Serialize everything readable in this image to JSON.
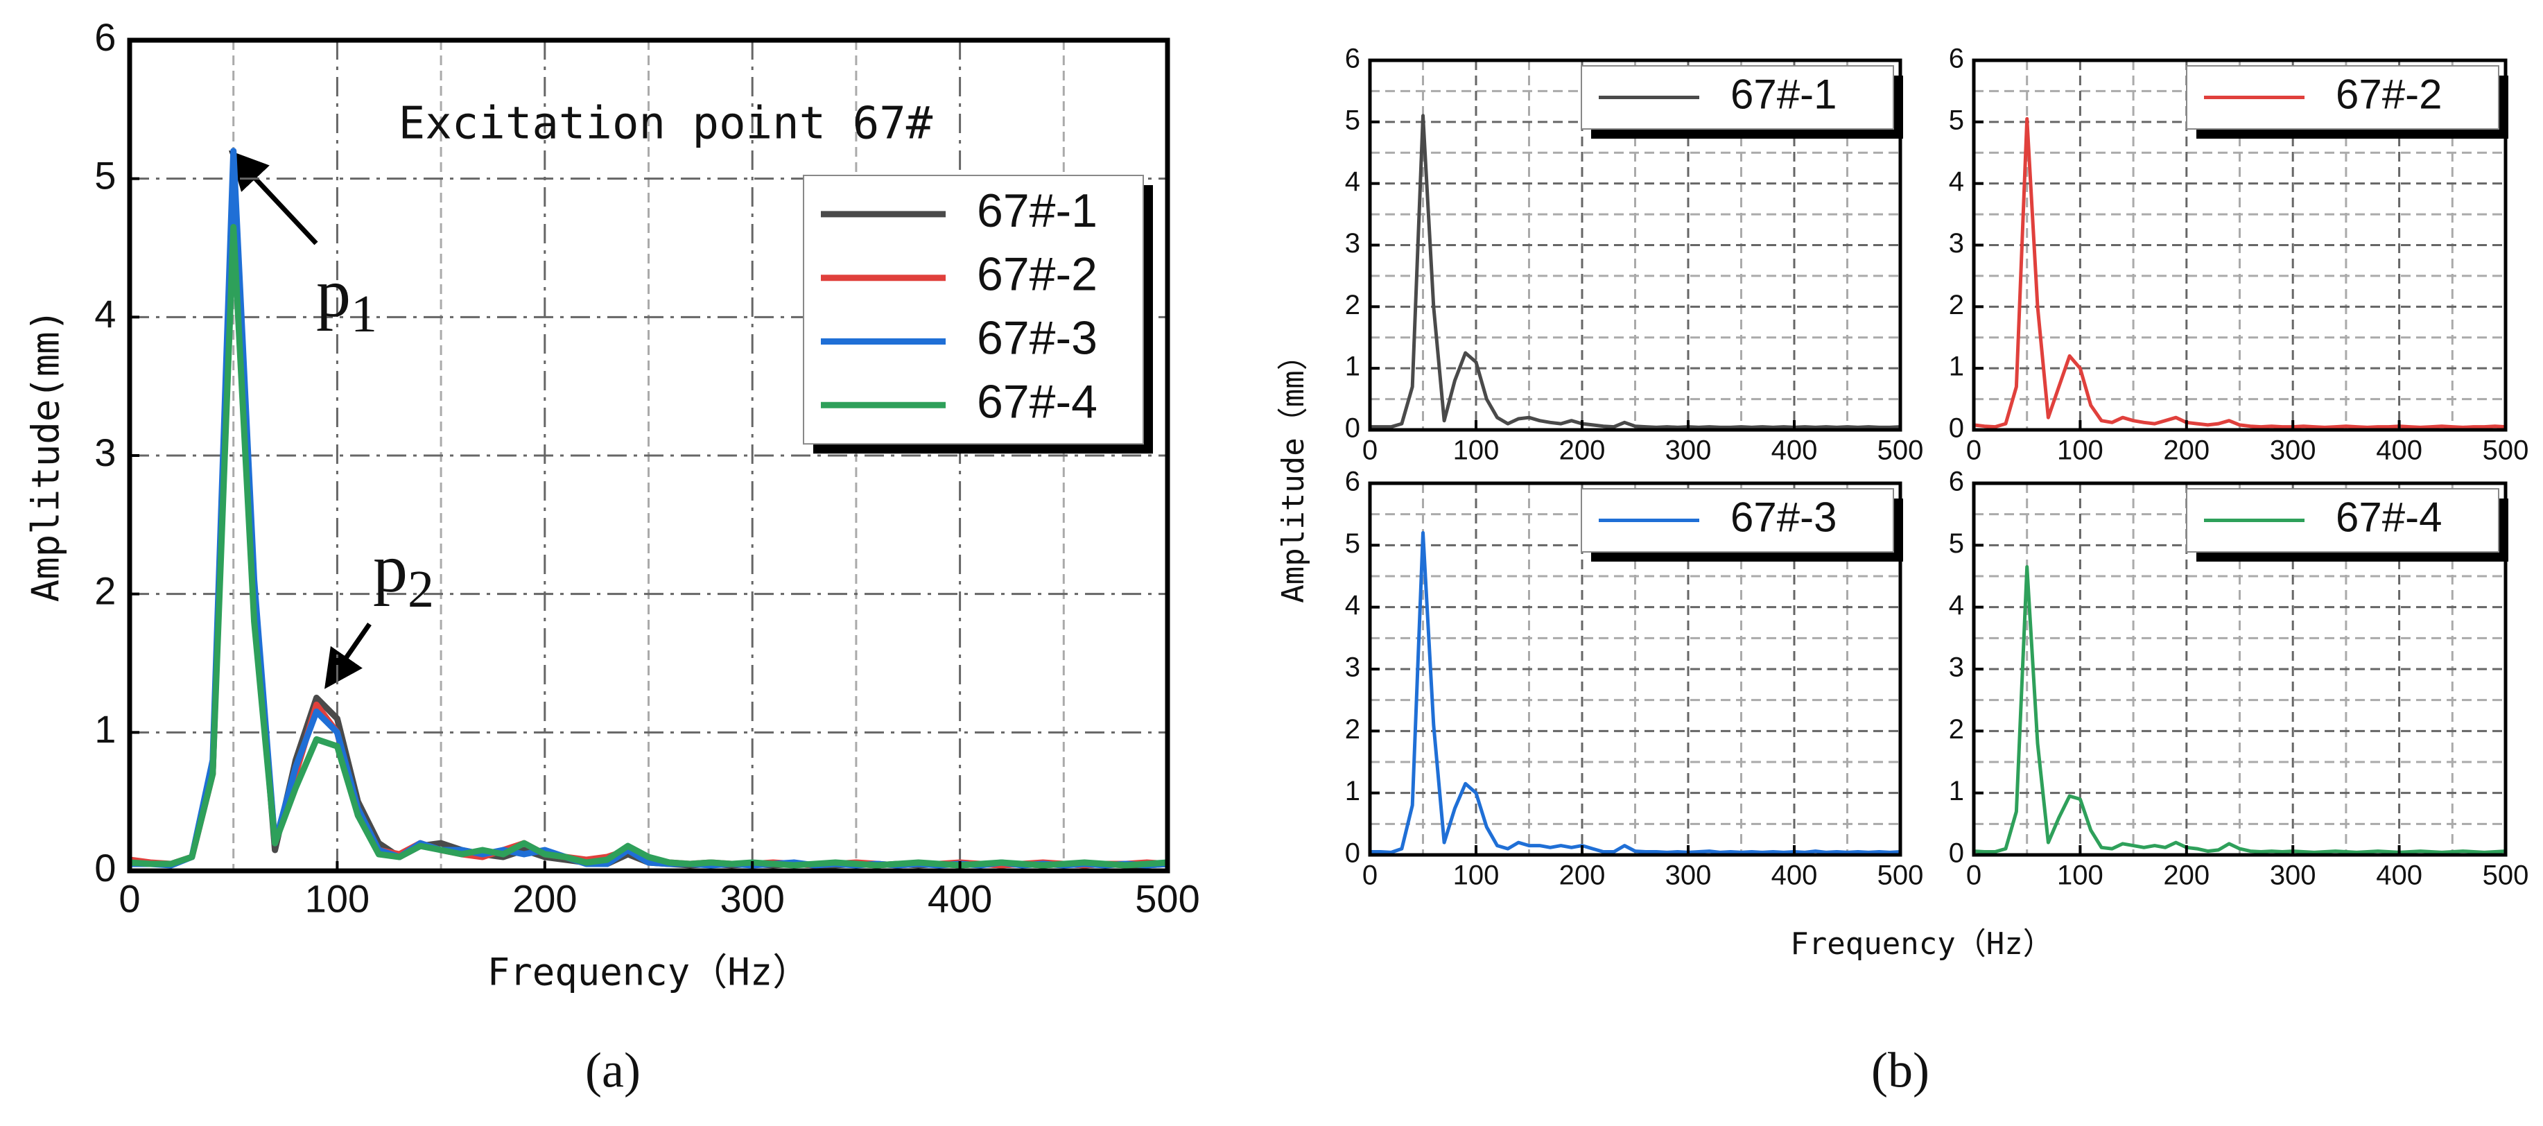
{
  "chart_data": [
    {
      "type": "line",
      "title": "Excitation point 67#",
      "xlabel": "Frequency（Hz）",
      "ylabel": "Amplitude(mm)",
      "xlim": [
        0,
        500
      ],
      "ylim": [
        0,
        6
      ],
      "xticks": [
        0,
        100,
        200,
        300,
        400,
        500
      ],
      "yticks": [
        0,
        1,
        2,
        3,
        4,
        5,
        6
      ],
      "xminorticks": [
        50,
        150,
        250,
        350,
        450
      ],
      "grid": true,
      "legend": "upper right",
      "annotations": [
        {
          "text": "p",
          "subscript": "1"
        },
        {
          "text": "p",
          "subscript": "2"
        }
      ],
      "x": [
        0,
        10,
        20,
        30,
        40,
        50,
        60,
        70,
        80,
        90,
        100,
        110,
        120,
        130,
        140,
        150,
        160,
        170,
        180,
        190,
        200,
        210,
        220,
        230,
        240,
        250,
        260,
        270,
        280,
        290,
        300,
        310,
        320,
        330,
        340,
        350,
        360,
        370,
        380,
        390,
        400,
        410,
        420,
        430,
        440,
        450,
        460,
        470,
        480,
        490,
        500
      ],
      "series": [
        {
          "name": "67#-1",
          "color": "#4a4a4a",
          "values": [
            0.05,
            0.05,
            0.05,
            0.1,
            0.7,
            5.1,
            2.0,
            0.15,
            0.8,
            1.25,
            1.1,
            0.5,
            0.2,
            0.1,
            0.18,
            0.2,
            0.15,
            0.12,
            0.1,
            0.15,
            0.1,
            0.08,
            0.06,
            0.05,
            0.12,
            0.06,
            0.05,
            0.04,
            0.05,
            0.04,
            0.05,
            0.04,
            0.05,
            0.04,
            0.04,
            0.05,
            0.04,
            0.05,
            0.04,
            0.05,
            0.04,
            0.05,
            0.04,
            0.05,
            0.04,
            0.05,
            0.04,
            0.05,
            0.04,
            0.04,
            0.05
          ]
        },
        {
          "name": "67#-2",
          "color": "#e0403c",
          "values": [
            0.08,
            0.06,
            0.05,
            0.1,
            0.7,
            5.05,
            2.0,
            0.2,
            0.7,
            1.2,
            1.0,
            0.4,
            0.15,
            0.12,
            0.2,
            0.15,
            0.12,
            0.1,
            0.15,
            0.2,
            0.12,
            0.1,
            0.08,
            0.1,
            0.15,
            0.08,
            0.06,
            0.05,
            0.06,
            0.05,
            0.05,
            0.06,
            0.05,
            0.04,
            0.05,
            0.06,
            0.05,
            0.04,
            0.05,
            0.05,
            0.06,
            0.05,
            0.04,
            0.05,
            0.06,
            0.05,
            0.04,
            0.05,
            0.05,
            0.06,
            0.05
          ]
        },
        {
          "name": "67#-3",
          "color": "#1f6fd6",
          "values": [
            0.05,
            0.05,
            0.04,
            0.1,
            0.8,
            5.2,
            2.1,
            0.2,
            0.75,
            1.15,
            1.0,
            0.45,
            0.15,
            0.1,
            0.2,
            0.15,
            0.15,
            0.12,
            0.15,
            0.12,
            0.15,
            0.1,
            0.05,
            0.05,
            0.15,
            0.06,
            0.05,
            0.05,
            0.04,
            0.05,
            0.04,
            0.05,
            0.06,
            0.04,
            0.05,
            0.04,
            0.05,
            0.04,
            0.05,
            0.04,
            0.05,
            0.04,
            0.06,
            0.04,
            0.05,
            0.04,
            0.05,
            0.04,
            0.05,
            0.04,
            0.05
          ]
        },
        {
          "name": "67#-4",
          "color": "#2ea05a",
          "values": [
            0.06,
            0.05,
            0.05,
            0.1,
            0.7,
            4.65,
            1.8,
            0.2,
            0.6,
            0.95,
            0.9,
            0.4,
            0.12,
            0.1,
            0.18,
            0.15,
            0.12,
            0.15,
            0.12,
            0.2,
            0.12,
            0.1,
            0.06,
            0.08,
            0.18,
            0.1,
            0.06,
            0.05,
            0.06,
            0.05,
            0.06,
            0.05,
            0.04,
            0.05,
            0.06,
            0.05,
            0.04,
            0.05,
            0.06,
            0.05,
            0.04,
            0.05,
            0.06,
            0.05,
            0.04,
            0.05,
            0.06,
            0.05,
            0.04,
            0.05,
            0.06
          ]
        }
      ]
    },
    {
      "type": "line",
      "xlim": [
        0,
        500
      ],
      "ylim": [
        0,
        6
      ],
      "xticks": [
        0,
        100,
        200,
        300,
        400,
        500
      ],
      "yticks": [
        0,
        1,
        2,
        3,
        4,
        5,
        6
      ],
      "xminorticks": [
        50,
        150,
        250,
        350,
        450
      ],
      "yminorticks": [
        0.5,
        1.5,
        2.5,
        3.5,
        4.5,
        5.5
      ],
      "grid": true,
      "legend": "upper right",
      "x": [
        0,
        10,
        20,
        30,
        40,
        50,
        60,
        70,
        80,
        90,
        100,
        110,
        120,
        130,
        140,
        150,
        160,
        170,
        180,
        190,
        200,
        210,
        220,
        230,
        240,
        250,
        260,
        270,
        280,
        290,
        300,
        310,
        320,
        330,
        340,
        350,
        360,
        370,
        380,
        390,
        400,
        410,
        420,
        430,
        440,
        450,
        460,
        470,
        480,
        490,
        500
      ],
      "series": [
        {
          "name": "67#-1",
          "color": "#4a4a4a",
          "values": [
            0.05,
            0.05,
            0.05,
            0.1,
            0.7,
            5.1,
            2.0,
            0.15,
            0.8,
            1.25,
            1.1,
            0.5,
            0.2,
            0.1,
            0.18,
            0.2,
            0.15,
            0.12,
            0.1,
            0.15,
            0.1,
            0.08,
            0.06,
            0.05,
            0.12,
            0.06,
            0.05,
            0.04,
            0.05,
            0.04,
            0.05,
            0.04,
            0.05,
            0.04,
            0.04,
            0.05,
            0.04,
            0.05,
            0.04,
            0.05,
            0.04,
            0.05,
            0.04,
            0.05,
            0.04,
            0.05,
            0.04,
            0.05,
            0.04,
            0.04,
            0.05
          ]
        }
      ]
    },
    {
      "type": "line",
      "xlim": [
        0,
        500
      ],
      "ylim": [
        0,
        6
      ],
      "xticks": [
        0,
        100,
        200,
        300,
        400,
        500
      ],
      "yticks": [
        0,
        1,
        2,
        3,
        4,
        5,
        6
      ],
      "xminorticks": [
        50,
        150,
        250,
        350,
        450
      ],
      "yminorticks": [
        0.5,
        1.5,
        2.5,
        3.5,
        4.5,
        5.5
      ],
      "grid": true,
      "legend": "upper right",
      "x": [
        0,
        10,
        20,
        30,
        40,
        50,
        60,
        70,
        80,
        90,
        100,
        110,
        120,
        130,
        140,
        150,
        160,
        170,
        180,
        190,
        200,
        210,
        220,
        230,
        240,
        250,
        260,
        270,
        280,
        290,
        300,
        310,
        320,
        330,
        340,
        350,
        360,
        370,
        380,
        390,
        400,
        410,
        420,
        430,
        440,
        450,
        460,
        470,
        480,
        490,
        500
      ],
      "series": [
        {
          "name": "67#-2",
          "color": "#e0403c",
          "values": [
            0.08,
            0.06,
            0.05,
            0.1,
            0.7,
            5.05,
            2.0,
            0.2,
            0.7,
            1.2,
            1.0,
            0.4,
            0.15,
            0.12,
            0.2,
            0.15,
            0.12,
            0.1,
            0.15,
            0.2,
            0.12,
            0.1,
            0.08,
            0.1,
            0.15,
            0.08,
            0.06,
            0.05,
            0.06,
            0.05,
            0.05,
            0.06,
            0.05,
            0.04,
            0.05,
            0.06,
            0.05,
            0.04,
            0.05,
            0.05,
            0.06,
            0.05,
            0.04,
            0.05,
            0.06,
            0.05,
            0.04,
            0.05,
            0.05,
            0.06,
            0.05
          ]
        }
      ]
    },
    {
      "type": "line",
      "xlim": [
        0,
        500
      ],
      "ylim": [
        0,
        6
      ],
      "xticks": [
        0,
        100,
        200,
        300,
        400,
        500
      ],
      "yticks": [
        0,
        1,
        2,
        3,
        4,
        5,
        6
      ],
      "xminorticks": [
        50,
        150,
        250,
        350,
        450
      ],
      "yminorticks": [
        0.5,
        1.5,
        2.5,
        3.5,
        4.5,
        5.5
      ],
      "grid": true,
      "legend": "upper right",
      "x": [
        0,
        10,
        20,
        30,
        40,
        50,
        60,
        70,
        80,
        90,
        100,
        110,
        120,
        130,
        140,
        150,
        160,
        170,
        180,
        190,
        200,
        210,
        220,
        230,
        240,
        250,
        260,
        270,
        280,
        290,
        300,
        310,
        320,
        330,
        340,
        350,
        360,
        370,
        380,
        390,
        400,
        410,
        420,
        430,
        440,
        450,
        460,
        470,
        480,
        490,
        500
      ],
      "series": [
        {
          "name": "67#-3",
          "color": "#1f6fd6",
          "values": [
            0.05,
            0.05,
            0.04,
            0.1,
            0.8,
            5.2,
            2.1,
            0.2,
            0.75,
            1.15,
            1.0,
            0.45,
            0.15,
            0.1,
            0.2,
            0.15,
            0.15,
            0.12,
            0.15,
            0.12,
            0.15,
            0.1,
            0.05,
            0.05,
            0.15,
            0.06,
            0.05,
            0.05,
            0.04,
            0.05,
            0.04,
            0.05,
            0.06,
            0.04,
            0.05,
            0.04,
            0.05,
            0.04,
            0.05,
            0.04,
            0.05,
            0.04,
            0.06,
            0.04,
            0.05,
            0.04,
            0.05,
            0.04,
            0.05,
            0.04,
            0.05
          ]
        }
      ]
    },
    {
      "type": "line",
      "xlim": [
        0,
        500
      ],
      "ylim": [
        0,
        6
      ],
      "xticks": [
        0,
        100,
        200,
        300,
        400,
        500
      ],
      "yticks": [
        0,
        1,
        2,
        3,
        4,
        5,
        6
      ],
      "xminorticks": [
        50,
        150,
        250,
        350,
        450
      ],
      "yminorticks": [
        0.5,
        1.5,
        2.5,
        3.5,
        4.5,
        5.5
      ],
      "grid": true,
      "legend": "upper right",
      "x": [
        0,
        10,
        20,
        30,
        40,
        50,
        60,
        70,
        80,
        90,
        100,
        110,
        120,
        130,
        140,
        150,
        160,
        170,
        180,
        190,
        200,
        210,
        220,
        230,
        240,
        250,
        260,
        270,
        280,
        290,
        300,
        310,
        320,
        330,
        340,
        350,
        360,
        370,
        380,
        390,
        400,
        410,
        420,
        430,
        440,
        450,
        460,
        470,
        480,
        490,
        500
      ],
      "series": [
        {
          "name": "67#-4",
          "color": "#2ea05a",
          "values": [
            0.06,
            0.05,
            0.05,
            0.1,
            0.7,
            4.65,
            1.8,
            0.2,
            0.6,
            0.95,
            0.9,
            0.4,
            0.12,
            0.1,
            0.18,
            0.15,
            0.12,
            0.15,
            0.12,
            0.2,
            0.12,
            0.1,
            0.06,
            0.08,
            0.18,
            0.1,
            0.06,
            0.05,
            0.06,
            0.05,
            0.06,
            0.05,
            0.04,
            0.05,
            0.06,
            0.05,
            0.04,
            0.05,
            0.06,
            0.05,
            0.04,
            0.05,
            0.06,
            0.05,
            0.04,
            0.05,
            0.06,
            0.05,
            0.04,
            0.05,
            0.06
          ]
        }
      ]
    }
  ],
  "panel_b": {
    "ylabel": "Amplitude（mm）",
    "xlabel": "Frequency（Hz）"
  },
  "captions": [
    "(a)",
    "(b)"
  ]
}
